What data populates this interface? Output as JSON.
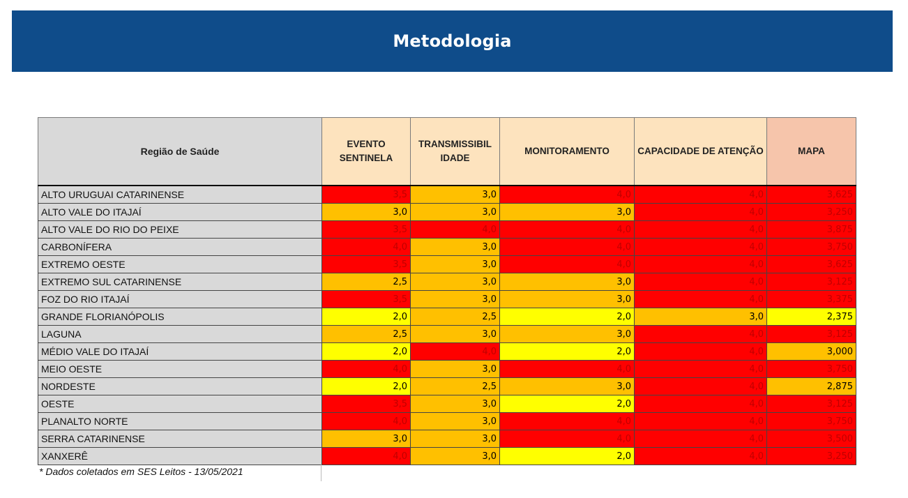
{
  "header": {
    "title": "Metodologia"
  },
  "table": {
    "columns": [
      "Região de Saúde",
      "EVENTO SENTINELA",
      "TRANSMISSIBIL IDADE",
      "MONITORAMENTO",
      "CAPACIDADE DE ATENÇÃO",
      "MAPA"
    ],
    "rows": [
      [
        "ALTO URUGUAI CATARINENSE",
        "3,5",
        "3,0",
        "4,0",
        "4,0",
        "3,625"
      ],
      [
        "ALTO VALE DO ITAJAÍ",
        "3,0",
        "3,0",
        "3,0",
        "4,0",
        "3,250"
      ],
      [
        "ALTO VALE DO RIO DO PEIXE",
        "3,5",
        "4,0",
        "4,0",
        "4,0",
        "3,875"
      ],
      [
        "CARBONÍFERA",
        "4,0",
        "3,0",
        "4,0",
        "4,0",
        "3,750"
      ],
      [
        "EXTREMO OESTE",
        "3,5",
        "3,0",
        "4,0",
        "4,0",
        "3,625"
      ],
      [
        "EXTREMO SUL CATARINENSE",
        "2,5",
        "3,0",
        "3,0",
        "4,0",
        "3,125"
      ],
      [
        "FOZ DO RIO ITAJAÍ",
        "3,5",
        "3,0",
        "3,0",
        "4,0",
        "3,375"
      ],
      [
        "GRANDE FLORIANÓPOLIS",
        "2,0",
        "2,5",
        "2,0",
        "3,0",
        "2,375"
      ],
      [
        "LAGUNA",
        "2,5",
        "3,0",
        "3,0",
        "4,0",
        "3,125"
      ],
      [
        "MÉDIO VALE DO ITAJAÍ",
        "2,0",
        "4,0",
        "2,0",
        "4,0",
        "3,000"
      ],
      [
        "MEIO OESTE",
        "4,0",
        "3,0",
        "4,0",
        "4,0",
        "3,750"
      ],
      [
        "NORDESTE",
        "2,0",
        "2,5",
        "3,0",
        "4,0",
        "2,875"
      ],
      [
        "OESTE",
        "3,5",
        "3,0",
        "2,0",
        "4,0",
        "3,125"
      ],
      [
        "PLANALTO NORTE",
        "4,0",
        "3,0",
        "4,0",
        "4,0",
        "3,750"
      ],
      [
        "SERRA CATARINENSE",
        "3,0",
        "3,0",
        "4,0",
        "4,0",
        "3,500"
      ],
      [
        "XANXERÊ",
        "4,0",
        "3,0",
        "2,0",
        "4,0",
        "3,250"
      ]
    ]
  },
  "footnote": "* Dados coletados em SES Leitos - 13/05/2021",
  "colors": {
    "banner": "#0f4c8a",
    "gravissimo": "#ff0000",
    "grave": "#ffc000",
    "alto": "#ffff00",
    "text_on_red": "#c00000",
    "text_default": "#000000"
  }
}
